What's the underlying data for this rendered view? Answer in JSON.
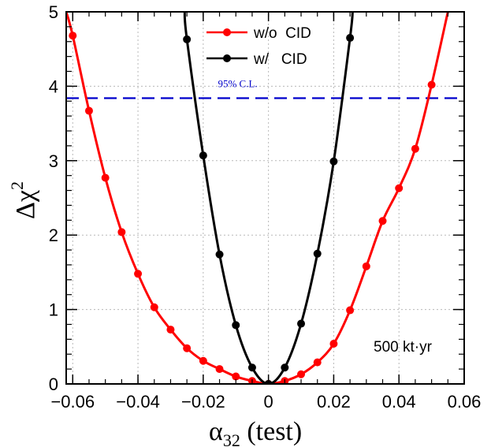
{
  "chart_data": {
    "type": "line",
    "title": "",
    "xlabel": "α",
    "xlabel_subscript": "32",
    "xlabel_suffix": " (test)",
    "ylabel": "Δχ",
    "ylabel_superscript": "2",
    "xlim": [
      -0.062,
      0.06
    ],
    "ylim": [
      0,
      5
    ],
    "xticks": [
      -0.06,
      -0.04,
      -0.02,
      0,
      0.02,
      0.04,
      0.06
    ],
    "xtick_labels": [
      "−0.06",
      "−0.04",
      "−0.02",
      "0",
      "0.02",
      "0.04",
      "0.06"
    ],
    "yticks": [
      0,
      1,
      2,
      3,
      4,
      5
    ],
    "ytick_labels": [
      "0",
      "1",
      "2",
      "3",
      "4",
      "5"
    ],
    "grid": true,
    "legend_position": "top-center",
    "series": [
      {
        "name": "w/o  CID",
        "color": "#ff0000",
        "x": [
          -0.06,
          -0.055,
          -0.05,
          -0.045,
          -0.04,
          -0.035,
          -0.03,
          -0.025,
          -0.02,
          -0.015,
          -0.01,
          -0.005,
          0,
          0.005,
          0.01,
          0.015,
          0.02,
          0.025,
          0.03,
          0.035,
          0.04,
          0.045,
          0.05
        ],
        "y": [
          4.68,
          3.67,
          2.77,
          2.04,
          1.48,
          1.03,
          0.73,
          0.48,
          0.31,
          0.2,
          0.1,
          0.04,
          0.0,
          0.04,
          0.13,
          0.29,
          0.54,
          0.99,
          1.58,
          2.19,
          2.63,
          3.16,
          4.02
        ],
        "curve_ends": [
          -0.062,
          0.055
        ],
        "curve_end_y": [
          5.0,
          5.0
        ]
      },
      {
        "name": "w/   CID",
        "color": "#000000",
        "x": [
          -0.025,
          -0.02,
          -0.015,
          -0.01,
          -0.005,
          0,
          0.005,
          0.01,
          0.015,
          0.02,
          0.025
        ],
        "y": [
          4.63,
          3.07,
          1.74,
          0.79,
          0.22,
          0.0,
          0.22,
          0.81,
          1.75,
          2.99,
          4.65
        ],
        "curve_ends": [
          -0.0257,
          0.0258
        ],
        "curve_end_y": [
          5.0,
          5.0
        ]
      }
    ],
    "reference_line": {
      "y": 3.84,
      "label": "95% C.L.",
      "color": "#0000cc",
      "style": "dashed"
    },
    "annotation": {
      "text": "500 kt·yr",
      "position": "bottom-right"
    }
  }
}
